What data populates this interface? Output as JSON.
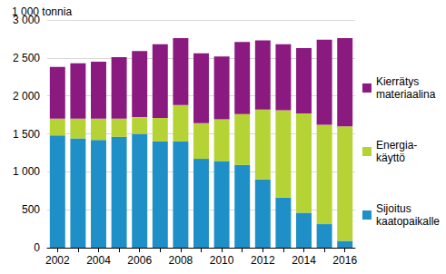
{
  "chart_data": {
    "type": "bar",
    "stacked": true,
    "title": "1 000 tonnia",
    "categories": [
      "2002",
      null,
      "2004",
      null,
      "2006",
      null,
      "2008",
      null,
      "2010",
      null,
      "2012",
      null,
      "2014",
      null,
      "2016"
    ],
    "series": [
      {
        "name": "Sijoitus\nkaatopaikalle",
        "color": "#1f8fc7",
        "values": [
          1480,
          1440,
          1420,
          1460,
          1500,
          1400,
          1400,
          1170,
          1140,
          1090,
          900,
          660,
          460,
          310,
          90
        ]
      },
      {
        "name": "Energia-\nkäyttö",
        "color": "#b5d334",
        "values": [
          220,
          260,
          280,
          240,
          220,
          310,
          480,
          470,
          550,
          670,
          920,
          1150,
          1310,
          1310,
          1510
        ]
      },
      {
        "name": "Kierrätys\nmateriaalina",
        "color": "#8b1a80",
        "values": [
          680,
          730,
          750,
          810,
          870,
          970,
          880,
          920,
          830,
          950,
          910,
          870,
          860,
          1120,
          1160
        ]
      }
    ],
    "ylim": [
      0,
      3000
    ],
    "yticks": [
      0,
      500,
      {
        "value": 1000,
        "label": "1 000"
      },
      {
        "value": 1500,
        "label": "1 500"
      },
      {
        "value": 2000,
        "label": "2 000"
      },
      {
        "value": 2500,
        "label": "2 500"
      },
      {
        "value": 3000,
        "label": "3 000"
      }
    ],
    "grid": true,
    "legend": "right"
  }
}
